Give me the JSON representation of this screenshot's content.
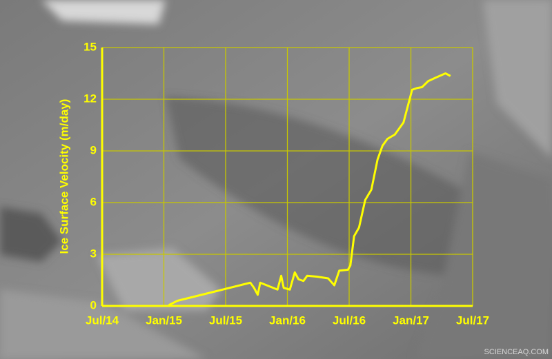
{
  "chart_data": {
    "type": "line",
    "y_label": "Ice Surface Velocity (m/day)",
    "xlim": [
      2014.5,
      2017.5
    ],
    "xticks": [
      {
        "value": 2014.5,
        "label": "Jul/14"
      },
      {
        "value": 2015.0,
        "label": "Jan/15"
      },
      {
        "value": 2015.5,
        "label": "Jul/15"
      },
      {
        "value": 2016.0,
        "label": "Jan/16"
      },
      {
        "value": 2016.5,
        "label": "Jul/16"
      },
      {
        "value": 2017.0,
        "label": "Jan/17"
      },
      {
        "value": 2017.5,
        "label": "Jul/17"
      }
    ],
    "ylim": [
      0,
      15
    ],
    "yticks": [
      0,
      3,
      6,
      9,
      12,
      15
    ],
    "grid": true,
    "grid_color": "#c8c800",
    "series": [
      {
        "color": "#ffff00",
        "x": [
          2015.04,
          2015.11,
          2015.7,
          2015.73,
          2015.76,
          2015.78,
          2015.85,
          2015.92,
          2015.95,
          2015.97,
          2016.02,
          2016.06,
          2016.09,
          2016.13,
          2016.16,
          2016.24,
          2016.33,
          2016.38,
          2016.42,
          2016.49,
          2016.51,
          2016.54,
          2016.58,
          2016.63,
          2016.68,
          2016.73,
          2016.77,
          2016.81,
          2016.87,
          2016.94,
          2017.01,
          2017.05,
          2017.09,
          2017.14,
          2017.2,
          2017.28,
          2017.32
        ],
        "values": [
          0.05,
          0.3,
          1.35,
          1.05,
          0.65,
          1.35,
          1.15,
          0.95,
          1.75,
          1.05,
          0.95,
          1.95,
          1.55,
          1.45,
          1.75,
          1.7,
          1.6,
          1.2,
          2.05,
          2.1,
          2.35,
          4.05,
          4.55,
          6.15,
          6.75,
          8.5,
          9.3,
          9.7,
          9.95,
          10.65,
          12.55,
          12.65,
          12.7,
          13.05,
          13.25,
          13.5,
          13.35
        ]
      }
    ]
  },
  "watermark": "SCIENCEAQ.COM"
}
